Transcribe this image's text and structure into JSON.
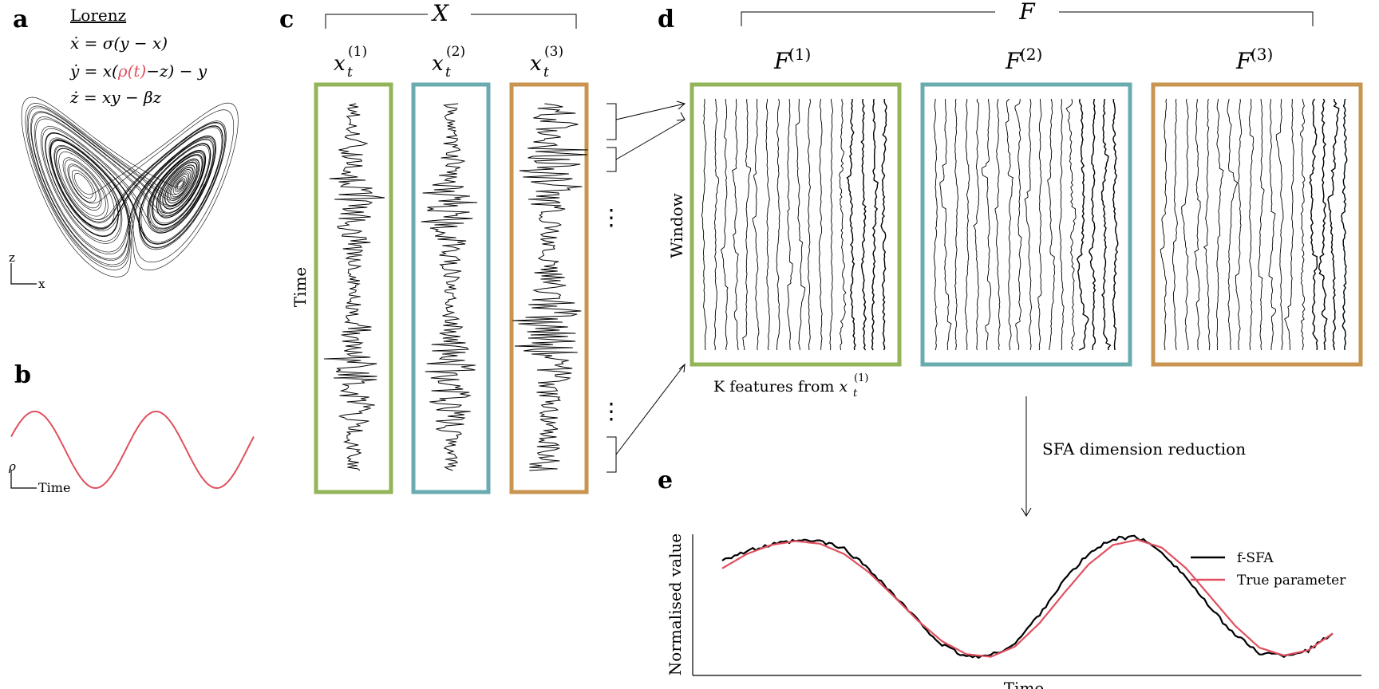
{
  "panels": {
    "a": {
      "letter": "a",
      "title": "Lorenz",
      "eq_x": "ẋ = σ(y − x)",
      "eq_y_pre": "ẏ = x(",
      "eq_y_rho": "ρ(t)",
      "eq_y_post": "−z) − y",
      "eq_z": "ż = xy − βz",
      "axis_z": "z",
      "axis_x": "x"
    },
    "b": {
      "letter": "b",
      "axis_rho": "ρ",
      "axis_time": "Time"
    },
    "c": {
      "letter": "c",
      "group_label": "X",
      "time_label": "Time",
      "columns": [
        {
          "base": "x",
          "sub": "t",
          "sup": "(1)"
        },
        {
          "base": "x",
          "sub": "t",
          "sup": "(2)"
        },
        {
          "base": "x",
          "sub": "t",
          "sup": "(3)"
        }
      ],
      "ellipsis": "⋮"
    },
    "d": {
      "letter": "d",
      "group_label": "F",
      "window_label": "Window",
      "matrices": [
        {
          "base": "F",
          "sup": "(1)"
        },
        {
          "base": "F",
          "sup": "(2)"
        },
        {
          "base": "F",
          "sup": "(3)"
        }
      ],
      "features_caption_pre": "K features from ",
      "features_caption_var": "x",
      "features_caption_sub": "t",
      "features_caption_sup": "(1)"
    },
    "sfa_label": "SFA dimension reduction",
    "e": {
      "letter": "e"
    }
  },
  "colors": {
    "green": "#93b55a",
    "teal": "#6aabb0",
    "orange": "#c99450",
    "red": "#e0505f",
    "black": "#000000"
  },
  "chart_data": {
    "type": "line",
    "xlabel": "Time",
    "ylabel": "Normalised value",
    "legend_position": "top-right",
    "series": [
      {
        "name": "f-SFA",
        "color": "#000000",
        "x": [
          0,
          0.04,
          0.08,
          0.12,
          0.16,
          0.2,
          0.24,
          0.28,
          0.32,
          0.36,
          0.4,
          0.44,
          0.48,
          0.52,
          0.56,
          0.6,
          0.64,
          0.68,
          0.72,
          0.76,
          0.8,
          0.84,
          0.88,
          0.92,
          0.96,
          1.0
        ],
        "values": [
          0.82,
          0.88,
          0.93,
          0.96,
          0.96,
          0.9,
          0.75,
          0.55,
          0.35,
          0.16,
          0.07,
          0.08,
          0.17,
          0.4,
          0.66,
          0.86,
          0.98,
          0.99,
          0.88,
          0.68,
          0.44,
          0.24,
          0.1,
          0.08,
          0.12,
          0.25
        ]
      },
      {
        "name": "True parameter",
        "color": "#e0505f",
        "x": [
          0,
          0.04,
          0.08,
          0.12,
          0.16,
          0.2,
          0.24,
          0.28,
          0.32,
          0.36,
          0.4,
          0.44,
          0.48,
          0.52,
          0.56,
          0.6,
          0.64,
          0.68,
          0.72,
          0.76,
          0.8,
          0.84,
          0.88,
          0.92,
          0.96,
          1.0
        ],
        "values": [
          0.75,
          0.86,
          0.93,
          0.96,
          0.94,
          0.86,
          0.72,
          0.54,
          0.35,
          0.19,
          0.09,
          0.07,
          0.15,
          0.33,
          0.56,
          0.78,
          0.93,
          0.97,
          0.91,
          0.75,
          0.53,
          0.31,
          0.14,
          0.08,
          0.12,
          0.25
        ]
      }
    ]
  }
}
